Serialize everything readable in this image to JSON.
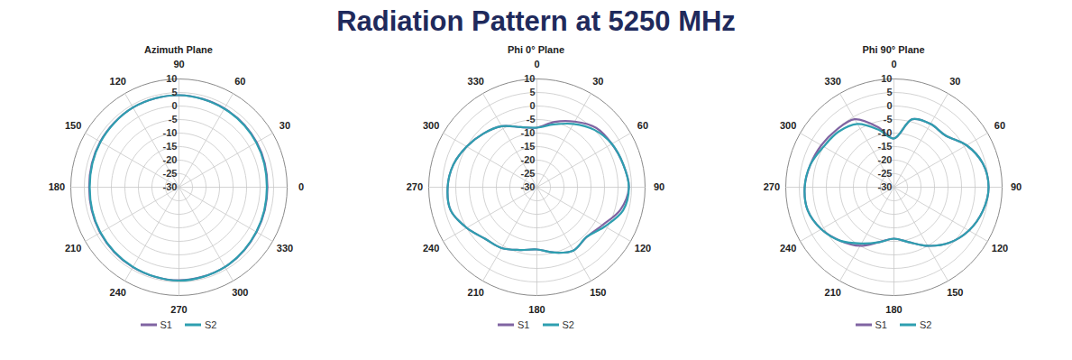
{
  "title": "Radiation Pattern at 5250 MHz",
  "chart_data": [
    {
      "type": "polar",
      "title": "Azimuth Plane",
      "x": [
        0,
        30,
        60,
        90,
        120,
        150,
        180,
        210,
        240,
        270,
        300,
        330
      ],
      "series": [
        {
          "name": "S1",
          "color": "#8064a2",
          "values": [
            2.7,
            3.2,
            3.6,
            4.0,
            4.0,
            3.6,
            3.2,
            3.6,
            4.1,
            4.4,
            4.0,
            3.1
          ]
        },
        {
          "name": "S2",
          "color": "#2e9fb0",
          "values": [
            2.5,
            3.0,
            3.5,
            4.0,
            4.0,
            3.5,
            3.0,
            3.5,
            4.0,
            4.5,
            4.0,
            3.0
          ]
        }
      ],
      "xlim": [
        0,
        360
      ],
      "xticks": [
        0,
        30,
        60,
        90,
        120,
        150,
        180,
        210,
        240,
        270,
        300,
        330
      ],
      "ylim": [
        -30,
        10
      ],
      "yticks": [
        -30,
        -25,
        -20,
        -15,
        -10,
        -5,
        0,
        5,
        10
      ],
      "grid": true,
      "legend": "bottom"
    },
    {
      "type": "polar",
      "title": "Phi 0° Plane",
      "x": [
        0,
        15,
        30,
        45,
        60,
        75,
        90,
        105,
        120,
        135,
        150,
        165,
        180,
        195,
        210,
        225,
        240,
        255,
        270,
        285,
        300,
        315,
        330,
        345
      ],
      "series": [
        {
          "name": "S1",
          "color": "#8064a2",
          "values": [
            -8,
            -5,
            -2,
            1,
            2,
            3,
            4,
            2,
            -2,
            -4,
            -3,
            -5,
            -7,
            -6,
            -4,
            -3,
            0,
            3,
            3,
            2,
            0,
            -2,
            -4,
            -7
          ]
        },
        {
          "name": "S2",
          "color": "#2e9fb0",
          "values": [
            -8,
            -6,
            -3,
            0,
            2,
            3,
            4,
            3,
            -1,
            -4,
            -3,
            -5,
            -7,
            -6,
            -4,
            -3,
            0,
            3,
            3,
            2,
            0,
            -2,
            -4,
            -7
          ]
        }
      ],
      "xlim": [
        0,
        360
      ],
      "xticks": [
        0,
        30,
        60,
        90,
        120,
        150,
        180,
        210,
        240,
        270,
        300,
        330
      ],
      "ylim": [
        -30,
        10
      ],
      "yticks": [
        -30,
        -25,
        -20,
        -15,
        -10,
        -5,
        0,
        5,
        10
      ],
      "grid": true,
      "legend": "bottom"
    },
    {
      "type": "polar",
      "title": "Phi 90° Plane",
      "x": [
        0,
        15,
        30,
        45,
        60,
        75,
        90,
        105,
        120,
        135,
        150,
        165,
        180,
        195,
        210,
        225,
        240,
        255,
        270,
        285,
        300,
        315,
        330,
        345
      ],
      "series": [
        {
          "name": "S1",
          "color": "#8064a2",
          "values": [
            -12,
            -4,
            -3,
            -3,
            1,
            4,
            5,
            4,
            2,
            -1,
            -5,
            -9,
            -11,
            -9,
            -5,
            -2,
            1,
            3,
            3,
            2,
            1,
            0,
            -1,
            -7
          ]
        },
        {
          "name": "S2",
          "color": "#2e9fb0",
          "values": [
            -12,
            -4,
            -3,
            -3,
            1,
            4,
            5,
            4,
            2,
            -1,
            -5,
            -9,
            -11,
            -9,
            -6,
            -2,
            1,
            3,
            3,
            2,
            0,
            -1,
            -3,
            -8
          ]
        }
      ],
      "xlim": [
        0,
        360
      ],
      "xticks": [
        0,
        30,
        60,
        90,
        120,
        150,
        180,
        210,
        240,
        270,
        300,
        330
      ],
      "ylim": [
        -30,
        10
      ],
      "yticks": [
        -30,
        -25,
        -20,
        -15,
        -10,
        -5,
        0,
        5,
        10
      ],
      "grid": true,
      "legend": "bottom"
    }
  ]
}
